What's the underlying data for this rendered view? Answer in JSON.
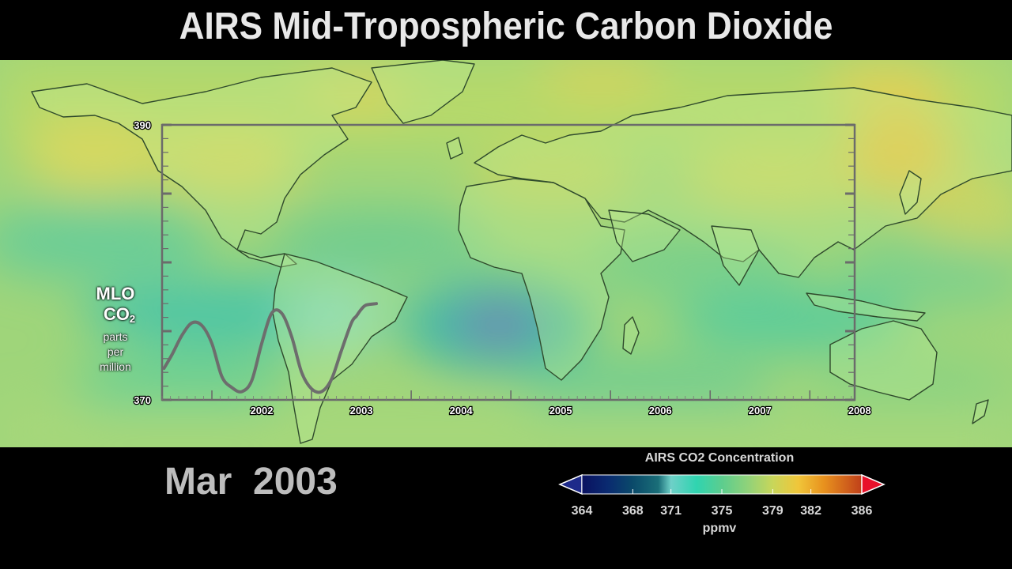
{
  "title": "AIRS Mid-Tropospheric Carbon Dioxide",
  "date_label": "Mar  2003",
  "inset_chart": {
    "ylabel_line1": "MLO",
    "ylabel_line2": "CO",
    "ylabel_subscript": "2",
    "ylabel_line3": "parts",
    "ylabel_line4": "per",
    "ylabel_line5": "million"
  },
  "colorbar": {
    "title": "AIRS CO2 Concentration",
    "unit": "ppmv",
    "ticks": [
      "364",
      "368",
      "371",
      "375",
      "379",
      "382",
      "386"
    ],
    "tick_values": [
      364,
      368,
      371,
      375,
      379,
      382,
      386
    ],
    "stops": [
      {
        "value": 364,
        "color": "#0a1160"
      },
      {
        "value": 366,
        "color": "#0a2a70"
      },
      {
        "value": 368,
        "color": "#0a4a6a"
      },
      {
        "value": 370,
        "color": "#1a6e78"
      },
      {
        "value": 371,
        "color": "#6fd0c8"
      },
      {
        "value": 373,
        "color": "#2fd4b0"
      },
      {
        "value": 375,
        "color": "#5ccd8e"
      },
      {
        "value": 377,
        "color": "#8fd27a"
      },
      {
        "value": 379,
        "color": "#c8d65a"
      },
      {
        "value": 381,
        "color": "#f0c63a"
      },
      {
        "value": 383,
        "color": "#e8921e"
      },
      {
        "value": 386,
        "color": "#c0401a"
      }
    ],
    "under_color": "#1e2a8a",
    "over_color": "#e8102a"
  },
  "chart_data": {
    "type": "line",
    "title": "",
    "xlabel": "",
    "ylabel": "MLO CO2 parts per million",
    "x_ticks": [
      "2002",
      "2003",
      "2004",
      "2005",
      "2006",
      "2007",
      "2008"
    ],
    "y_ticks": [
      "370",
      "390"
    ],
    "xlim": [
      2001.5,
      2008.45
    ],
    "ylim": [
      370,
      390
    ],
    "series": [
      {
        "x": [
          2001.52,
          2001.6,
          2001.7,
          2001.8,
          2001.9,
          2002.0,
          2002.1,
          2002.2,
          2002.3,
          2002.4,
          2002.5,
          2002.6,
          2002.7,
          2002.8,
          2002.9,
          2003.0,
          2003.1,
          2003.2,
          2003.3,
          2003.4,
          2003.45,
          2003.5,
          2003.55,
          2003.65
        ],
        "y": [
          372.3,
          373.3,
          374.7,
          375.6,
          375.4,
          374.1,
          371.7,
          370.9,
          370.6,
          371.4,
          374.1,
          376.3,
          376.3,
          374.6,
          372.0,
          370.8,
          370.6,
          371.5,
          373.6,
          375.6,
          376.1,
          376.6,
          376.9,
          377.0
        ]
      }
    ],
    "grid": false
  },
  "map": {
    "continents": [
      "North America",
      "South America",
      "Africa",
      "Europe",
      "Asia",
      "Australia"
    ]
  }
}
